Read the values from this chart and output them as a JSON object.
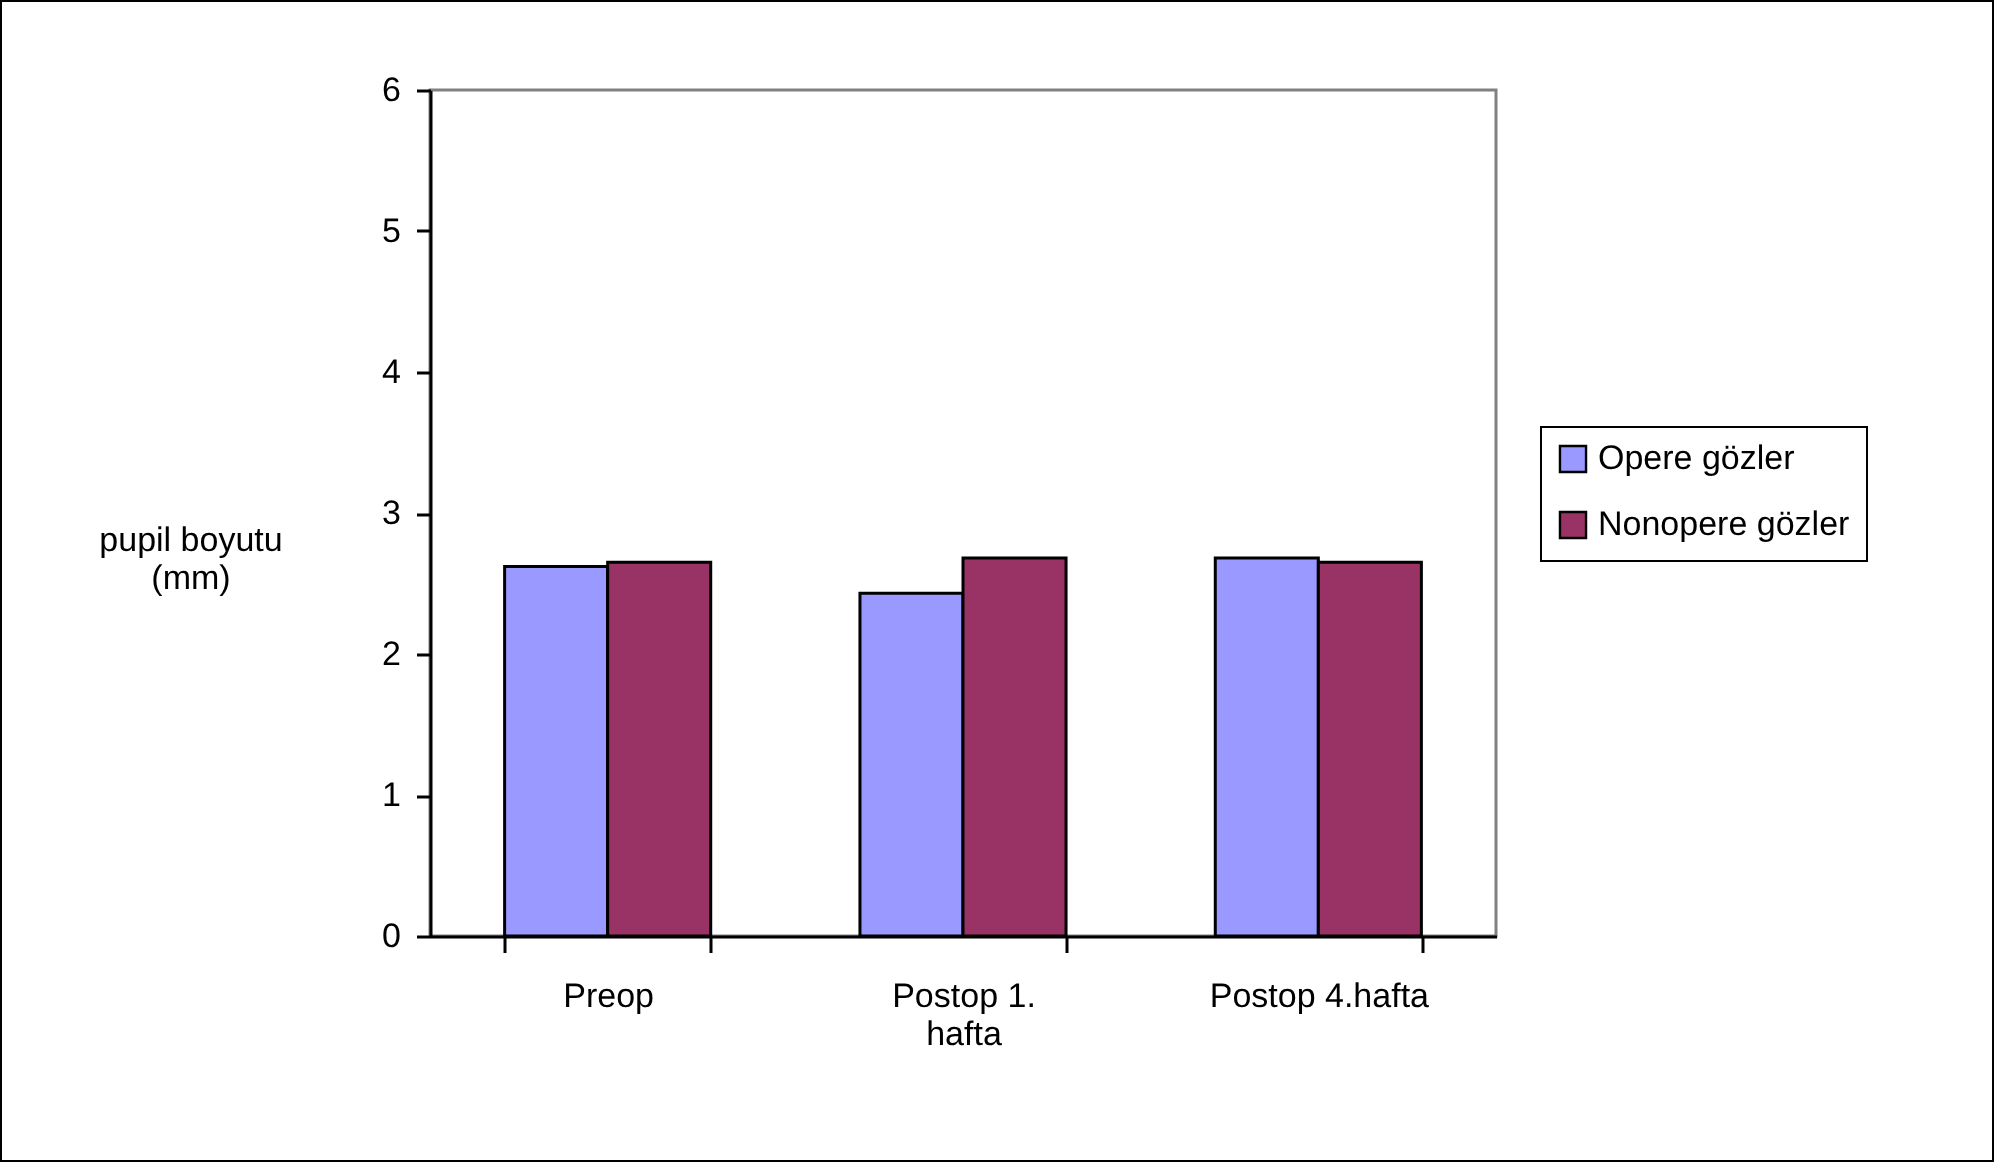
{
  "chart_data": {
    "type": "bar",
    "ylabel": "pupil boyutu (mm)",
    "categories": [
      "Preop",
      "Postop 1. hafta",
      "Postop 4.hafta"
    ],
    "series": [
      {
        "name": "Opere gözler",
        "color": "#9999ff",
        "values": [
          2.62,
          2.43,
          2.68
        ]
      },
      {
        "name": "Nonopere gözler",
        "color": "#993366",
        "values": [
          2.65,
          2.68,
          2.65
        ]
      }
    ],
    "ylim": [
      0,
      6
    ],
    "yticks": [
      0,
      1,
      2,
      3,
      4,
      5,
      6
    ],
    "grid": false,
    "legend": "right"
  }
}
